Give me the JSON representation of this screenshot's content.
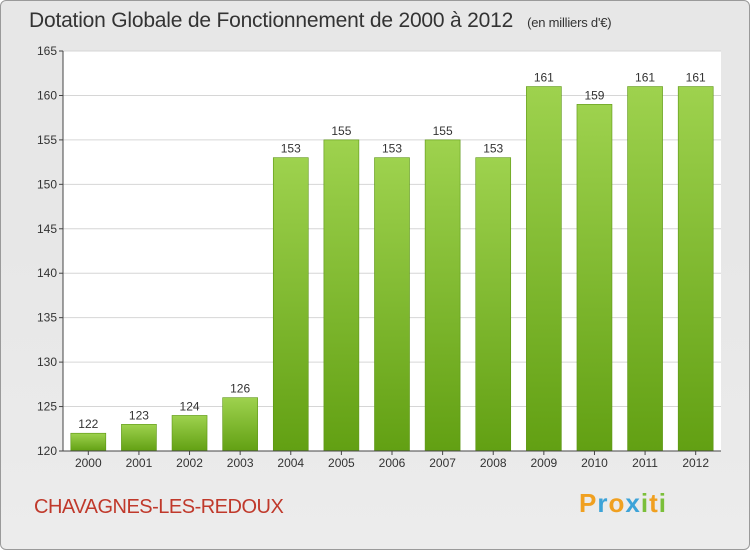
{
  "header": {
    "title": "Dotation Globale de Fonctionnement de 2000 à 2012",
    "unit": "(en milliers d'€)"
  },
  "footer": {
    "commune": "CHAVAGNES-LES-REDOUX",
    "logo_letters": [
      "P",
      "r",
      "o",
      "x",
      "i",
      "t",
      "i"
    ]
  },
  "colors": {
    "bar_light": "#9ed24e",
    "bar_dark": "#62a013",
    "commune_text": "#c0392b",
    "axis": "#444444"
  },
  "chart_data": {
    "type": "bar",
    "categories": [
      "2000",
      "2001",
      "2002",
      "2003",
      "2004",
      "2005",
      "2006",
      "2007",
      "2008",
      "2009",
      "2010",
      "2011",
      "2012"
    ],
    "values": [
      122,
      123,
      124,
      126,
      153,
      155,
      153,
      155,
      153,
      161,
      159,
      161,
      161
    ],
    "data_labels": [
      "122",
      "123",
      "124",
      "126",
      "153",
      "155",
      "153",
      "155",
      "153",
      "161",
      "159",
      "161",
      "161"
    ],
    "ylim": [
      120,
      165
    ],
    "yticks": [
      120,
      125,
      130,
      135,
      140,
      145,
      150,
      155,
      160,
      165
    ],
    "ytick_labels": [
      "120",
      "125",
      "130",
      "135",
      "140",
      "145",
      "150",
      "155",
      "160",
      "165"
    ],
    "grid": true,
    "legend": "none"
  }
}
